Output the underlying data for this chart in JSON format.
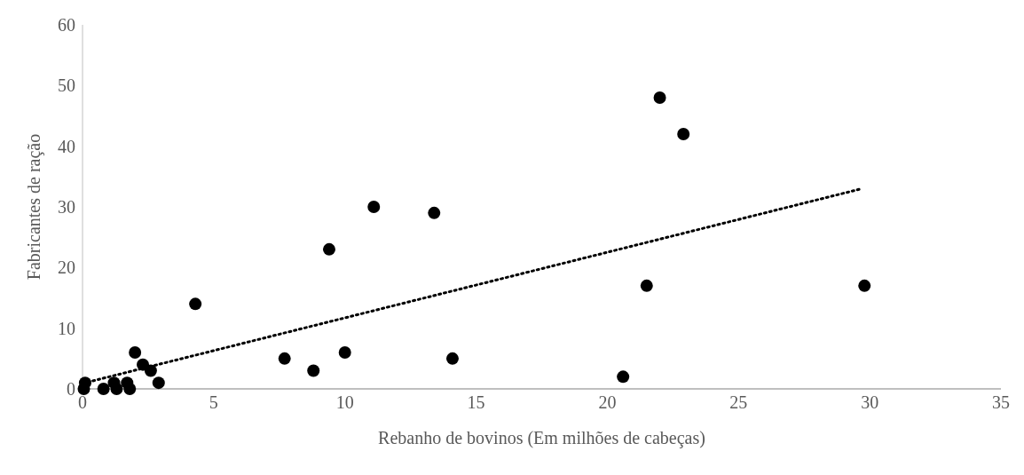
{
  "chart_data": {
    "type": "scatter",
    "xlabel": "Rebanho de bovinos (Em milhões de cabeças)",
    "ylabel": "Fabricantes de ração",
    "xlim": [
      0,
      35
    ],
    "xticks": [
      0,
      5,
      10,
      15,
      20,
      25,
      30,
      35
    ],
    "ylim": [
      0,
      60
    ],
    "yticks": [
      0,
      10,
      20,
      30,
      40,
      50,
      60
    ],
    "grid": false,
    "legend": false,
    "marker": "circle",
    "series": [
      {
        "type": "line",
        "color": "#000000",
        "line_style": "dotted",
        "marker": "none",
        "x": [
          0,
          29.7
        ],
        "values": [
          0.9,
          33
        ]
      },
      {
        "color": "#000000",
        "x": [
          0.1,
          0.05,
          0.8,
          1.2,
          1.3,
          1.7,
          1.8,
          2.0,
          2.3,
          2.6,
          2.9,
          4.3,
          7.7,
          8.8,
          9.4,
          10.0,
          11.1,
          13.4,
          14.1,
          20.6,
          21.5,
          22.0,
          22.9,
          29.8
        ],
        "values": [
          1,
          0,
          0,
          1,
          0,
          1,
          0,
          6,
          4,
          3,
          1,
          14,
          5,
          3,
          23,
          6,
          30,
          29,
          5,
          2,
          17,
          48,
          42,
          17
        ]
      }
    ]
  }
}
